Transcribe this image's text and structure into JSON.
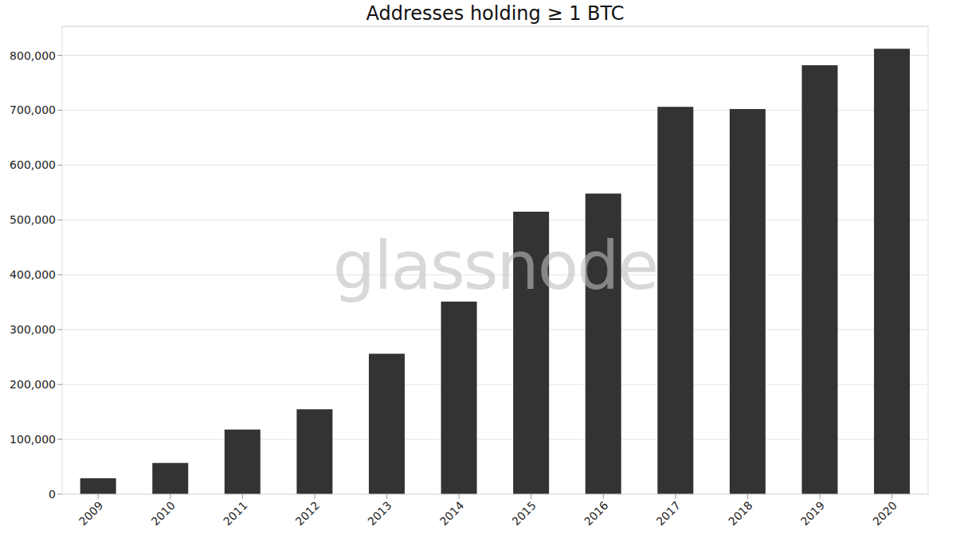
{
  "chart_data": {
    "type": "bar",
    "title": "Addresses holding ≥ 1 BTC",
    "annotations": [
      "glassnode"
    ],
    "categories": [
      "2009",
      "2010",
      "2011",
      "2012",
      "2013",
      "2014",
      "2015",
      "2016",
      "2017",
      "2018",
      "2019",
      "2020"
    ],
    "values": [
      29000,
      57000,
      118000,
      155000,
      256000,
      351000,
      515000,
      548000,
      706000,
      702000,
      782000,
      812000
    ],
    "color": "#333333",
    "ylim": [
      0,
      853000
    ],
    "yticks": [
      0,
      {
        "value": 100000,
        "label": "100,000"
      },
      {
        "value": 200000,
        "label": "200,000"
      },
      {
        "value": 300000,
        "label": "300,000"
      },
      {
        "value": 400000,
        "label": "400,000"
      },
      {
        "value": 500000,
        "label": "500,000"
      },
      {
        "value": 600000,
        "label": "600,000"
      },
      {
        "value": 700000,
        "label": "700,000"
      },
      {
        "value": 800000,
        "label": "800,000"
      }
    ],
    "grid": true
  }
}
